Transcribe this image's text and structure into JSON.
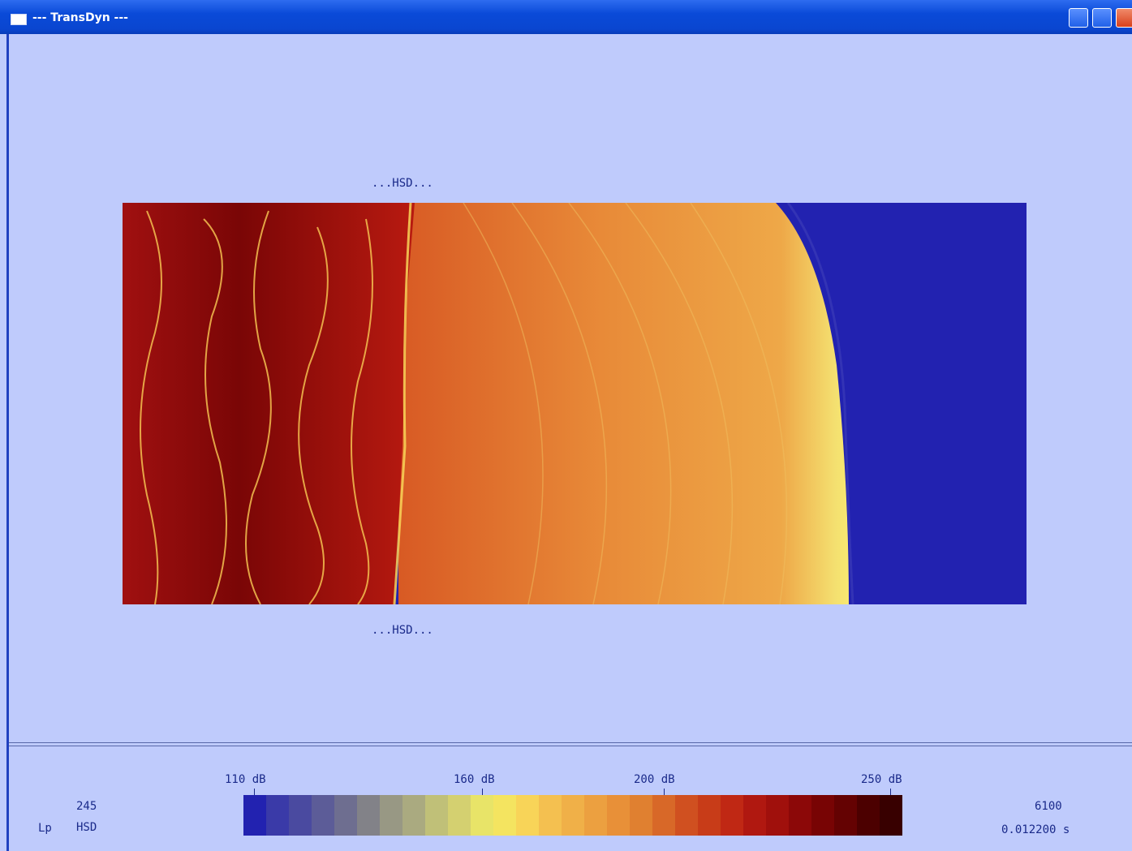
{
  "window": {
    "title": "--- TransDyn ---"
  },
  "field": {
    "label_top": "...HSD...",
    "label_bottom": "...HSD..."
  },
  "colorbar": {
    "ticks": [
      "110 dB",
      "160 dB",
      "200 dB",
      "250 dB"
    ],
    "colors": [
      "#2222b0",
      "#3a3aa8",
      "#4a4aa0",
      "#5c5c98",
      "#6e6e90",
      "#828288",
      "#989884",
      "#aaaa80",
      "#c0c078",
      "#d4d070",
      "#e8e468",
      "#f4e460",
      "#f8d458",
      "#f4c050",
      "#f0b048",
      "#eca040",
      "#e89038",
      "#e08030",
      "#d86828",
      "#d05020",
      "#c83c18",
      "#c02814",
      "#b01810",
      "#a0100c",
      "#8c0808",
      "#780404",
      "#640202",
      "#4c0000",
      "#380000"
    ]
  },
  "status": {
    "left_value": "245",
    "quantity": "Lp",
    "left_name": "HSD",
    "right_value": "6100",
    "time": "0.012200 s"
  }
}
